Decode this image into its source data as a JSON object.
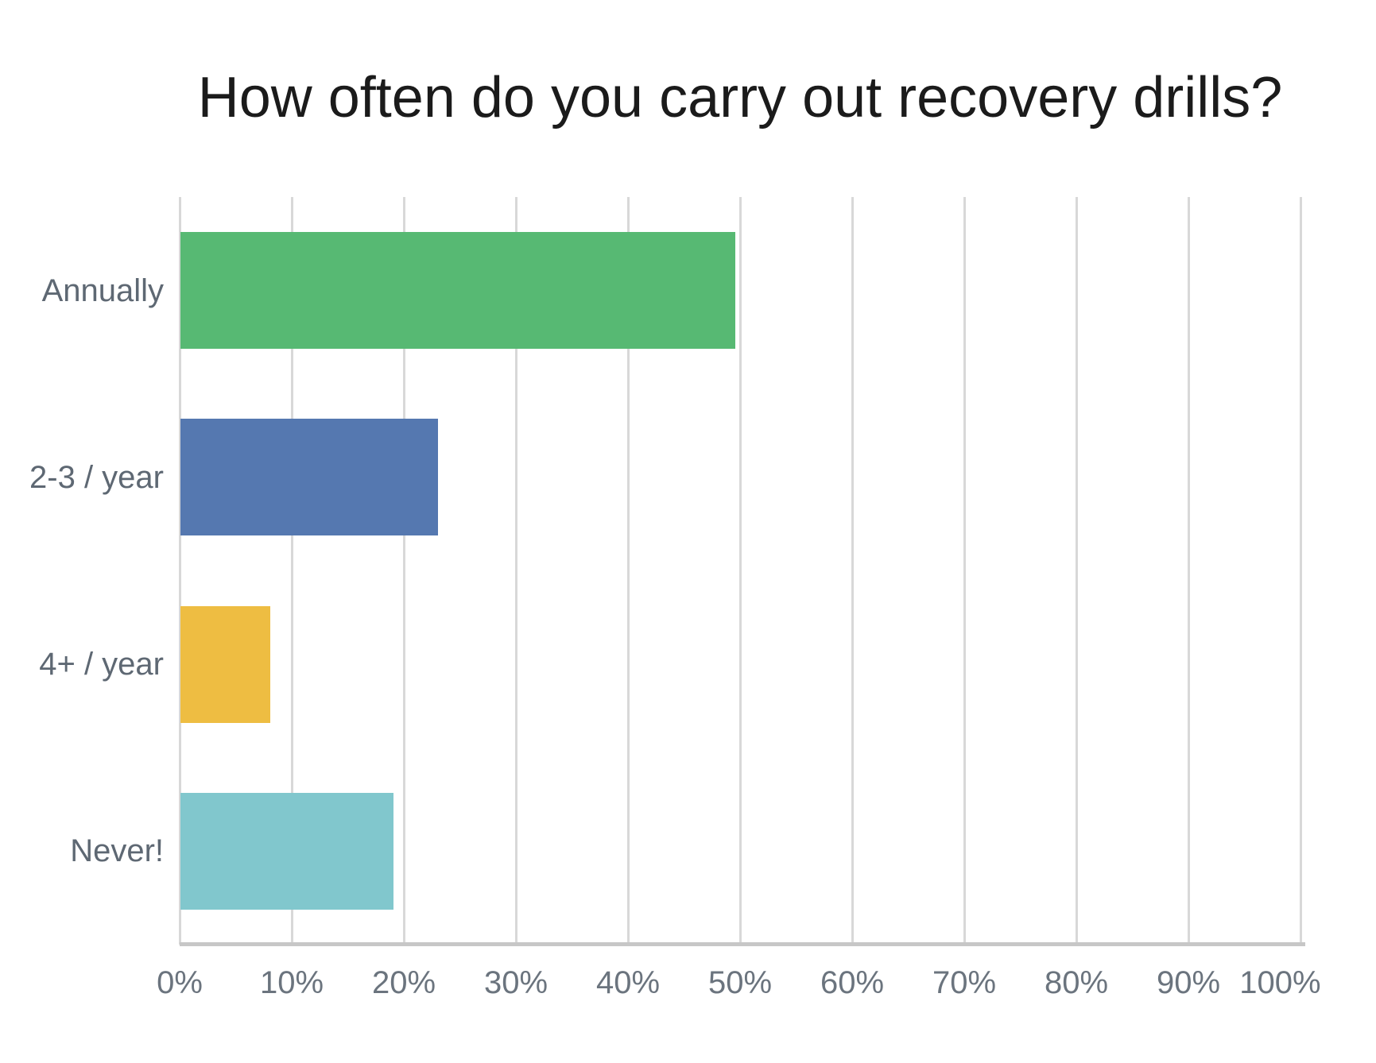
{
  "chart_data": {
    "type": "bar",
    "orientation": "horizontal",
    "title": "How often do you carry out recovery drills?",
    "categories": [
      "Annually",
      "2-3 / year",
      "4+ / year",
      "Never!"
    ],
    "values": [
      49.5,
      23,
      8,
      19
    ],
    "value_unit": "percent",
    "series_colors": [
      "#57b973",
      "#5578b0",
      "#eebd42",
      "#81c7cd"
    ],
    "xlim": [
      0,
      100
    ],
    "x_ticks": [
      {
        "value": 0,
        "label": "0%"
      },
      {
        "value": 10,
        "label": "10%"
      },
      {
        "value": 20,
        "label": "20%"
      },
      {
        "value": 30,
        "label": "30%"
      },
      {
        "value": 40,
        "label": "40%"
      },
      {
        "value": 50,
        "label": "50%"
      },
      {
        "value": 60,
        "label": "60%"
      },
      {
        "value": 70,
        "label": "70%"
      },
      {
        "value": 80,
        "label": "80%"
      },
      {
        "value": 90,
        "label": "90%"
      },
      {
        "value": 100,
        "label": "100%"
      }
    ],
    "grid": "vertical",
    "legend": false,
    "colors": {
      "title_text": "#1b1b1b",
      "category_label_text": "#5e6873",
      "tick_label_text": "#6b747e",
      "gridline": "#d8d8d8",
      "axis_line": "#c7c7c7",
      "background": "#ffffff"
    }
  }
}
